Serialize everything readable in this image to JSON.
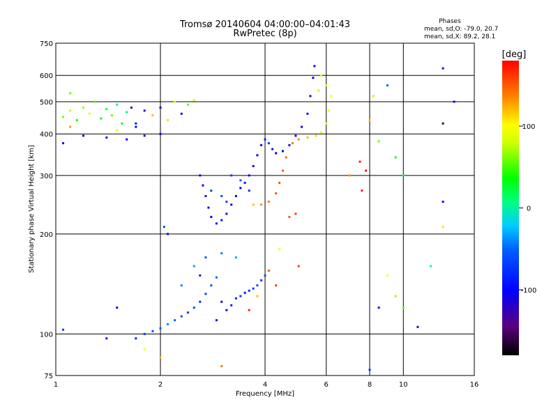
{
  "chart_data": {
    "type": "scatter",
    "title": "Tromsø 20140604 04:00:00–04:01:43",
    "subtitle": "RwPretec (8p)",
    "xlabel": "Frequency [MHz]",
    "ylabel": "Stationary phase Virtual Height [km]",
    "x_scale": "log",
    "y_scale": "log",
    "xlim": [
      1,
      16
    ],
    "ylim": [
      75,
      750
    ],
    "x_ticks": [
      1,
      2,
      4,
      6,
      8,
      10,
      16
    ],
    "y_ticks": [
      75,
      100,
      200,
      300,
      400,
      500,
      600,
      750
    ],
    "grid": true,
    "phase_stats": {
      "header": "Phases",
      "line_o": "mean, sd,O: -79.0, 20.7",
      "line_x": "mean, sd,X:  89.2, 28.1"
    },
    "colorbar": {
      "label": "[deg]",
      "range": [
        -180,
        180
      ],
      "ticks": [
        100,
        0,
        -100
      ],
      "colormap": "rainbow"
    },
    "series": [
      {
        "points": [
          [
            1.05,
            450,
            60
          ],
          [
            1.1,
            470,
            80
          ],
          [
            1.15,
            440,
            40
          ],
          [
            1.2,
            480,
            70
          ],
          [
            1.25,
            460,
            90
          ],
          [
            1.3,
            500,
            50
          ],
          [
            1.35,
            445,
            30
          ],
          [
            1.4,
            475,
            20
          ],
          [
            1.45,
            455,
            60
          ],
          [
            1.5,
            490,
            10
          ],
          [
            1.55,
            430,
            40
          ],
          [
            1.6,
            465,
            0
          ],
          [
            1.65,
            480,
            -120
          ],
          [
            1.7,
            420,
            -100
          ],
          [
            1.8,
            470,
            -110
          ],
          [
            1.9,
            455,
            120
          ],
          [
            2.0,
            480,
            -130
          ],
          [
            2.1,
            440,
            110
          ],
          [
            2.2,
            500,
            90
          ],
          [
            2.3,
            460,
            -100
          ],
          [
            2.4,
            490,
            60
          ],
          [
            2.5,
            505,
            80
          ],
          [
            1.2,
            395,
            -110
          ],
          [
            1.4,
            390,
            -120
          ],
          [
            1.6,
            385,
            -100
          ],
          [
            1.8,
            395,
            -130
          ],
          [
            2.0,
            400,
            -110
          ],
          [
            1.1,
            420,
            130
          ],
          [
            1.5,
            410,
            90
          ],
          [
            1.7,
            430,
            -90
          ],
          [
            2.6,
            300,
            -110
          ],
          [
            2.65,
            280,
            -100
          ],
          [
            2.7,
            260,
            -120
          ],
          [
            2.75,
            240,
            -110
          ],
          [
            2.8,
            225,
            -100
          ],
          [
            2.9,
            215,
            -95
          ],
          [
            3.0,
            220,
            -90
          ],
          [
            3.1,
            230,
            -110
          ],
          [
            3.2,
            245,
            -105
          ],
          [
            3.3,
            260,
            -100
          ],
          [
            3.4,
            275,
            -100
          ],
          [
            3.5,
            285,
            -90
          ],
          [
            3.6,
            300,
            -100
          ],
          [
            3.7,
            320,
            -110
          ],
          [
            3.8,
            345,
            -105
          ],
          [
            3.9,
            370,
            -100
          ],
          [
            4.0,
            385,
            -80
          ],
          [
            4.1,
            375,
            -70
          ],
          [
            4.2,
            360,
            -90
          ],
          [
            4.3,
            350,
            -100
          ],
          [
            4.5,
            355,
            -110
          ],
          [
            4.7,
            370,
            -100
          ],
          [
            4.9,
            395,
            -105
          ],
          [
            5.1,
            420,
            -110
          ],
          [
            5.3,
            460,
            -100
          ],
          [
            5.4,
            520,
            -110
          ],
          [
            5.5,
            590,
            -100
          ],
          [
            5.55,
            640,
            -105
          ],
          [
            3.0,
            260,
            -60
          ],
          [
            3.2,
            300,
            -70
          ],
          [
            3.4,
            290,
            -50
          ],
          [
            3.6,
            270,
            -80
          ],
          [
            2.8,
            270,
            -70
          ],
          [
            3.1,
            250,
            -65
          ],
          [
            3.7,
            245,
            120
          ],
          [
            3.9,
            245,
            130
          ],
          [
            4.1,
            250,
            140
          ],
          [
            4.3,
            265,
            150
          ],
          [
            4.4,
            285,
            155
          ],
          [
            4.5,
            310,
            150
          ],
          [
            4.6,
            340,
            145
          ],
          [
            4.8,
            375,
            140
          ],
          [
            5.0,
            385,
            135
          ],
          [
            5.3,
            390,
            120
          ],
          [
            5.6,
            395,
            110
          ],
          [
            5.8,
            405,
            100
          ],
          [
            6.0,
            430,
            95
          ],
          [
            6.1,
            470,
            90
          ],
          [
            6.2,
            520,
            100
          ],
          [
            6.0,
            560,
            90
          ],
          [
            5.8,
            600,
            85
          ],
          [
            5.7,
            540,
            80
          ],
          [
            4.7,
            225,
            150
          ],
          [
            4.9,
            230,
            160
          ],
          [
            1.7,
            97,
            -80
          ],
          [
            1.8,
            100,
            -70
          ],
          [
            1.9,
            102,
            -60
          ],
          [
            2.0,
            104,
            -50
          ],
          [
            2.1,
            107,
            -40
          ],
          [
            2.2,
            110,
            -50
          ],
          [
            2.3,
            113,
            -60
          ],
          [
            2.4,
            116,
            -70
          ],
          [
            2.5,
            120,
            -60
          ],
          [
            2.6,
            125,
            -80
          ],
          [
            2.7,
            132,
            -70
          ],
          [
            2.8,
            140,
            -60
          ],
          [
            2.9,
            148,
            -50
          ],
          [
            3.0,
            125,
            -100
          ],
          [
            3.1,
            118,
            -110
          ],
          [
            3.2,
            122,
            -90
          ],
          [
            3.3,
            128,
            -80
          ],
          [
            3.4,
            130,
            -70
          ],
          [
            3.5,
            133,
            -90
          ],
          [
            3.6,
            135,
            -80
          ],
          [
            3.7,
            137,
            -70
          ],
          [
            3.8,
            140,
            -60
          ],
          [
            3.9,
            145,
            -70
          ],
          [
            4.0,
            150,
            -60
          ],
          [
            2.3,
            140,
            -40
          ],
          [
            2.5,
            160,
            -30
          ],
          [
            2.7,
            170,
            -50
          ],
          [
            3.0,
            175,
            -40
          ],
          [
            3.3,
            170,
            -30
          ],
          [
            2.1,
            200,
            -100
          ],
          [
            2.05,
            210,
            -60
          ],
          [
            2.6,
            150,
            -90
          ],
          [
            2.9,
            110,
            -110
          ],
          [
            1.5,
            120,
            -110
          ],
          [
            1.4,
            97,
            -90
          ],
          [
            3.8,
            130,
            120
          ],
          [
            4.1,
            155,
            150
          ],
          [
            4.3,
            140,
            160
          ],
          [
            3.6,
            118,
            170
          ],
          [
            7.5,
            330,
            170
          ],
          [
            7.8,
            310,
            175
          ],
          [
            7.6,
            270,
            170
          ],
          [
            7.0,
            300,
            130
          ],
          [
            8.2,
            520,
            110
          ],
          [
            8.0,
            440,
            120
          ],
          [
            8.5,
            380,
            60
          ],
          [
            9.5,
            340,
            40
          ],
          [
            10.0,
            300,
            20
          ],
          [
            13.0,
            630,
            -110
          ],
          [
            14.0,
            500,
            -100
          ],
          [
            13.0,
            430,
            -160
          ],
          [
            13.0,
            250,
            -100
          ],
          [
            13.0,
            210,
            110
          ],
          [
            9.0,
            150,
            100
          ],
          [
            9.5,
            130,
            70
          ],
          [
            10.0,
            120,
            60
          ],
          [
            11.0,
            105,
            -120
          ],
          [
            12.0,
            160,
            10
          ],
          [
            8.5,
            120,
            -90
          ],
          [
            8.0,
            78,
            -70
          ],
          [
            9.0,
            560,
            -50
          ],
          [
            3.0,
            80,
            140
          ],
          [
            1.05,
            103,
            -70
          ],
          [
            1.05,
            375,
            -100
          ],
          [
            1.1,
            530,
            60
          ],
          [
            1.8,
            90,
            100
          ],
          [
            2.0,
            85,
            120
          ],
          [
            4.4,
            180,
            100
          ],
          [
            5.0,
            160,
            160
          ]
        ]
      }
    ]
  }
}
